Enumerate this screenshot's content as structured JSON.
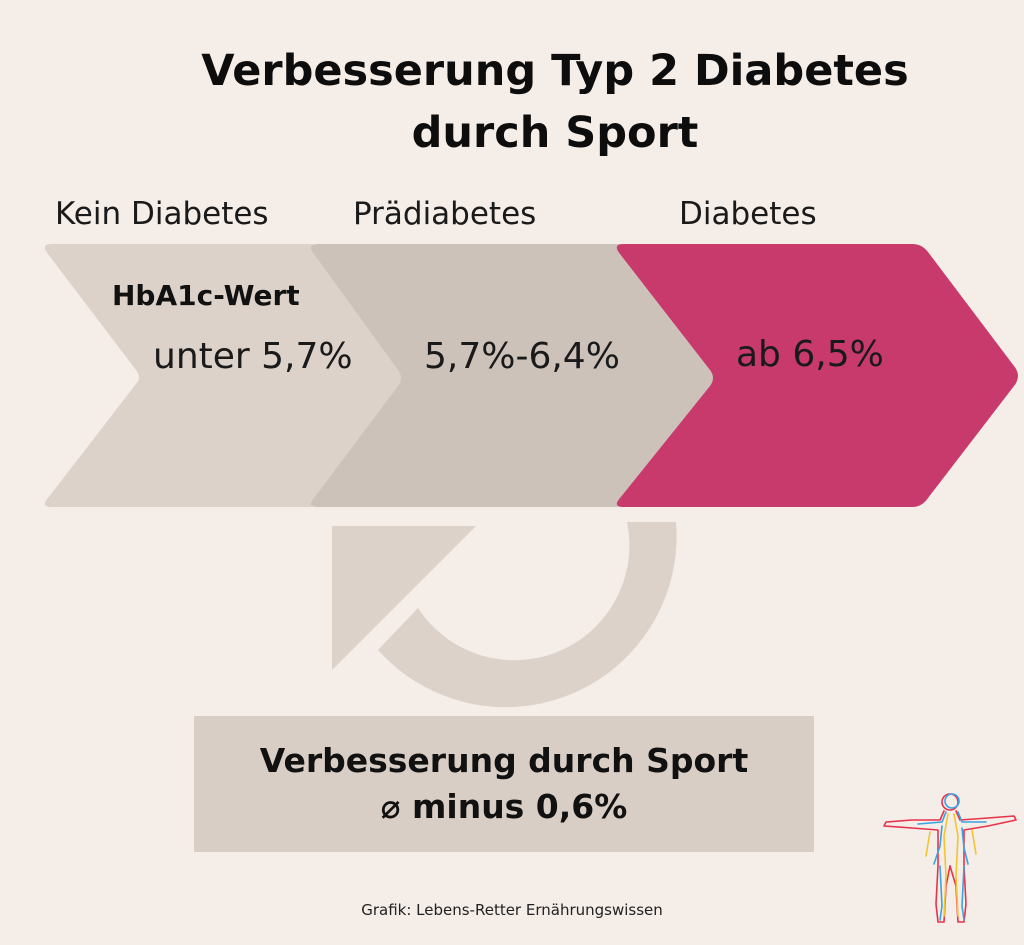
{
  "title": {
    "line1": "Verbesserung Typ 2 Diabetes",
    "line2": "durch Sport"
  },
  "metric_label": "HbA1c-Wert",
  "stages": [
    {
      "label": "Kein Diabetes",
      "value": "unter 5,7%",
      "color": "#dcd2ca"
    },
    {
      "label": "Prädiabetes",
      "value": "5,7%-6,4%",
      "color": "#cdc2ba"
    },
    {
      "label": "Diabetes",
      "value": "ab 6,5%",
      "color": "#c93a6c"
    }
  ],
  "loop_arrow_color": "#dcd2ca",
  "result": {
    "line1": "Verbesserung durch Sport",
    "line2": "⌀ minus 0,6%"
  },
  "credit": "Grafik: Lebens-Retter Ernährungswissen",
  "icons": {
    "loop": "circular-arrow-icon",
    "person": "person-outline-icon"
  }
}
